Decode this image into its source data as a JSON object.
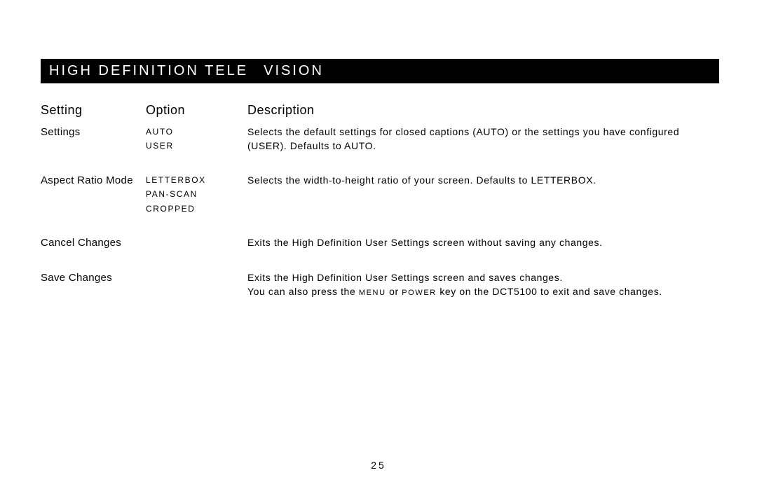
{
  "title": {
    "part1": "HIGH DEFINITION TELE",
    "part2": "VISION"
  },
  "headers": {
    "setting": "Setting",
    "option": "Option",
    "description": "Description"
  },
  "rows": [
    {
      "setting": "Settings",
      "options": [
        "AUTO",
        "USER"
      ],
      "desc_before": "Selects the default settings for closed captions (AUTO) or the settings you have configured (",
      "desc_sc": "USER",
      "desc_after": "). Defaults to AUTO."
    },
    {
      "setting": "Aspect Ratio Mode",
      "options": [
        "LETTERBOX",
        "PAN-SCAN",
        "CROPPED"
      ],
      "desc": "Selects the width-to-height ratio of your screen. Defaults to LETTERBOX."
    },
    {
      "setting": "Cancel Changes",
      "options": [],
      "desc": "Exits the High Definition User Settings screen without saving any changes."
    },
    {
      "setting": "Save Changes",
      "options": [],
      "line1": "Exits the High Definition User Settings screen and saves changes.",
      "line2_before": "You can also press the ",
      "line2_sc1": "MENU",
      "line2_mid": " or ",
      "line2_sc2": "POWER",
      "line2_after": " key on the DCT5100 to exit and save changes."
    }
  ],
  "page_number": "25"
}
